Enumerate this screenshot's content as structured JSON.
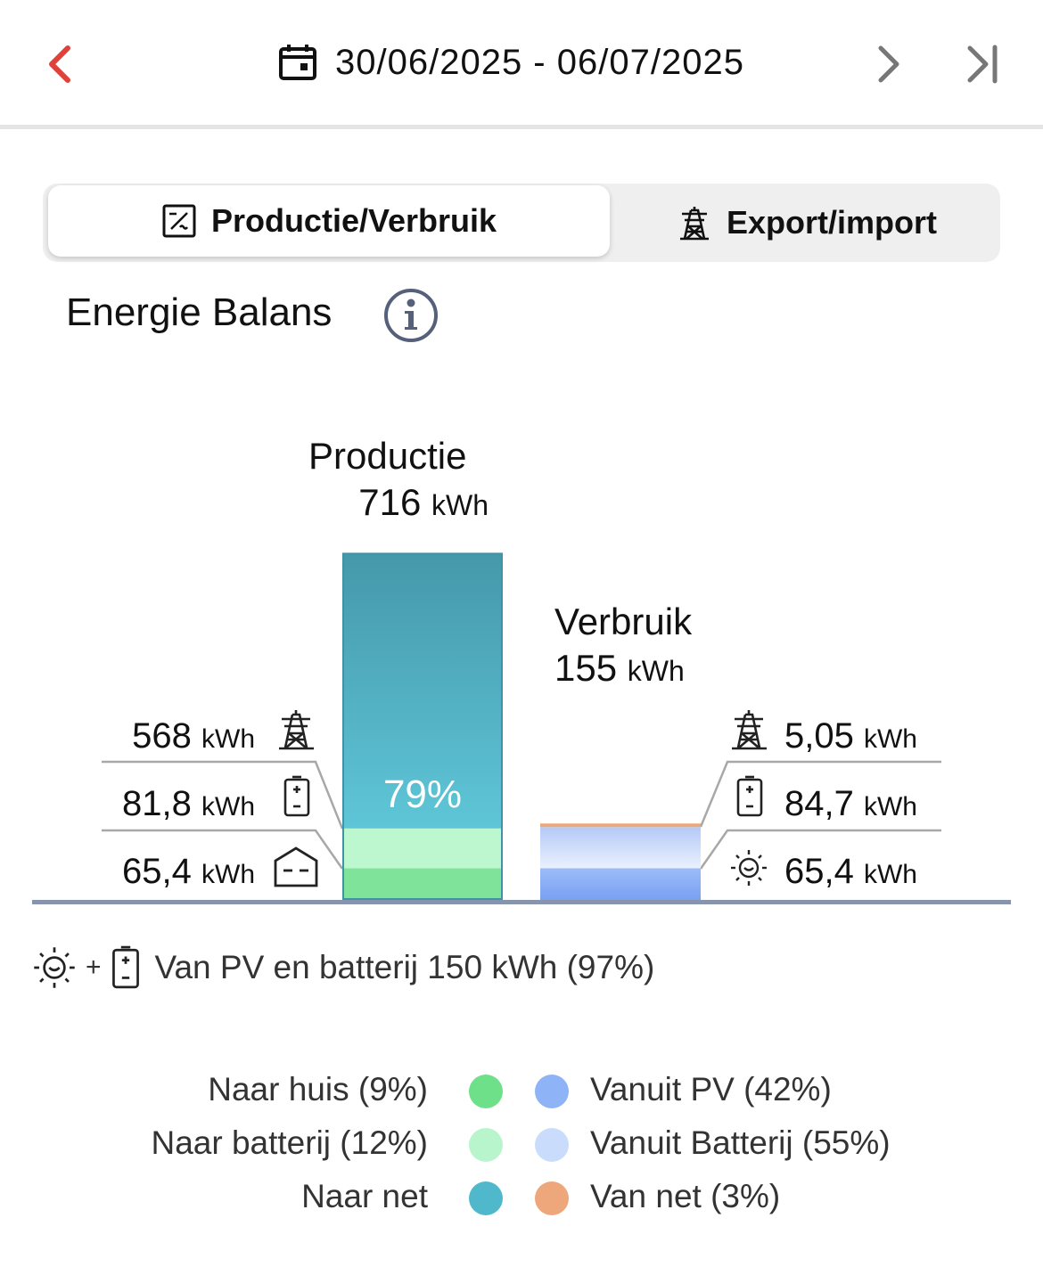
{
  "header": {
    "date_range": "30/06/2025 - 06/07/2025",
    "icons": [
      "chevron-left-icon",
      "calendar-icon",
      "chevron-right-icon",
      "skip-to-end-icon"
    ],
    "accent": "#e0413a"
  },
  "tabs": [
    {
      "label": "Productie/Verbruik",
      "icon": "inverter-icon",
      "selected": true
    },
    {
      "label": "Export/import",
      "icon": "power-tower-icon",
      "selected": false
    }
  ],
  "section": {
    "title": "Energie Balans",
    "info_icon": "info-icon"
  },
  "production": {
    "title": "Productie",
    "value": "716",
    "unit": "kWh",
    "percent_label": "79%",
    "rows": [
      {
        "value": "568",
        "unit": "kWh",
        "icon": "power-tower-icon"
      },
      {
        "value": "81,8",
        "unit": "kWh",
        "icon": "battery-icon"
      },
      {
        "value": "65,4",
        "unit": "kWh",
        "icon": "house-icon"
      }
    ]
  },
  "consumption": {
    "title": "Verbruik",
    "value": "155",
    "unit": "kWh",
    "rows": [
      {
        "value": "5,05",
        "unit": "kWh",
        "icon": "power-tower-icon"
      },
      {
        "value": "84,7",
        "unit": "kWh",
        "icon": "battery-icon"
      },
      {
        "value": "65,4",
        "unit": "kWh",
        "icon": "sun-icon"
      }
    ]
  },
  "summary": {
    "plus": "+",
    "text": "Van PV en batterij 150 kWh (97%)"
  },
  "legend": {
    "left": [
      {
        "label": "Naar huis (9%)",
        "color": "#6fe08a"
      },
      {
        "label": "Naar batterij (12%)",
        "color": "#b9f5cc"
      },
      {
        "label": "Naar net",
        "color": "#4fb9cb"
      }
    ],
    "right": [
      {
        "label": "Vanuit PV (42%)",
        "color": "#8fb3f7"
      },
      {
        "label": "Vanuit Batterij (55%)",
        "color": "#cadcfb"
      },
      {
        "label": "Van net (3%)",
        "color": "#eea77a"
      }
    ]
  },
  "chart_data": {
    "type": "bar",
    "categories": [
      "Productie",
      "Verbruik"
    ],
    "series": [
      {
        "name": "Naar huis (9%)",
        "values": [
          65.4,
          null
        ]
      },
      {
        "name": "Naar batterij (12%)",
        "values": [
          81.8,
          null
        ]
      },
      {
        "name": "Naar net",
        "values": [
          568,
          null
        ]
      },
      {
        "name": "Vanuit PV (42%)",
        "values": [
          null,
          65.4
        ]
      },
      {
        "name": "Vanuit Batterij (55%)",
        "values": [
          null,
          84.7
        ]
      },
      {
        "name": "Van net (3%)",
        "values": [
          null,
          5.05
        ]
      }
    ],
    "totals": [
      716,
      155
    ],
    "stacked": true,
    "ylabel": "",
    "ylim": [
      0,
      716
    ]
  }
}
